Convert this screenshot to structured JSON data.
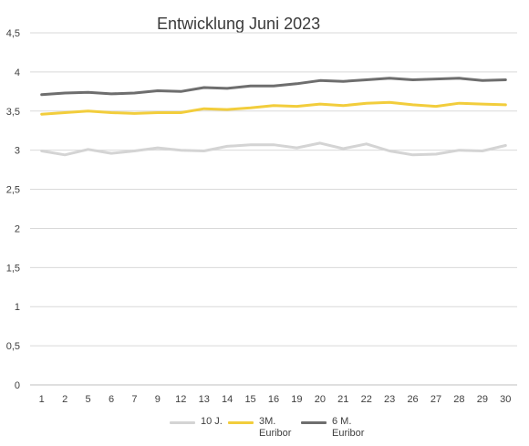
{
  "chart_data": {
    "type": "line",
    "title": "Entwicklung Juni 2023",
    "xlabel": "",
    "ylabel": "",
    "categories": [
      "1",
      "2",
      "5",
      "6",
      "7",
      "9",
      "12",
      "13",
      "14",
      "15",
      "16",
      "19",
      "20",
      "21",
      "22",
      "23",
      "26",
      "27",
      "28",
      "29",
      "30"
    ],
    "y_ticks": [
      "0",
      "0,5",
      "1",
      "1,5",
      "2",
      "2,5",
      "3",
      "3,5",
      "4",
      "4,5"
    ],
    "ylim": [
      0,
      4.5
    ],
    "grid": "horizontal",
    "legend_position": "bottom",
    "series": [
      {
        "name": "10 J.",
        "color": "#d4d4d4",
        "values": [
          2.99,
          2.94,
          3.01,
          2.96,
          2.99,
          3.03,
          3.0,
          2.99,
          3.05,
          3.07,
          3.07,
          3.03,
          3.09,
          3.02,
          3.08,
          2.99,
          2.94,
          2.95,
          3.0,
          2.99,
          3.06
        ]
      },
      {
        "name": "3M. Euribor",
        "color": "#f2cd3c",
        "values": [
          3.46,
          3.48,
          3.5,
          3.48,
          3.47,
          3.48,
          3.48,
          3.53,
          3.52,
          3.54,
          3.57,
          3.56,
          3.59,
          3.57,
          3.6,
          3.61,
          3.58,
          3.56,
          3.6,
          3.59,
          3.58
        ]
      },
      {
        "name": "6 M. Euribor",
        "color": "#6e6e6e",
        "values": [
          3.71,
          3.73,
          3.74,
          3.72,
          3.73,
          3.76,
          3.75,
          3.8,
          3.79,
          3.82,
          3.82,
          3.85,
          3.89,
          3.88,
          3.9,
          3.92,
          3.9,
          3.91,
          3.92,
          3.89,
          3.9
        ]
      }
    ]
  },
  "legend": [
    {
      "label": "10 J."
    },
    {
      "label": "3M.\nEuribor"
    },
    {
      "label": "6 M.\nEuribor"
    }
  ]
}
